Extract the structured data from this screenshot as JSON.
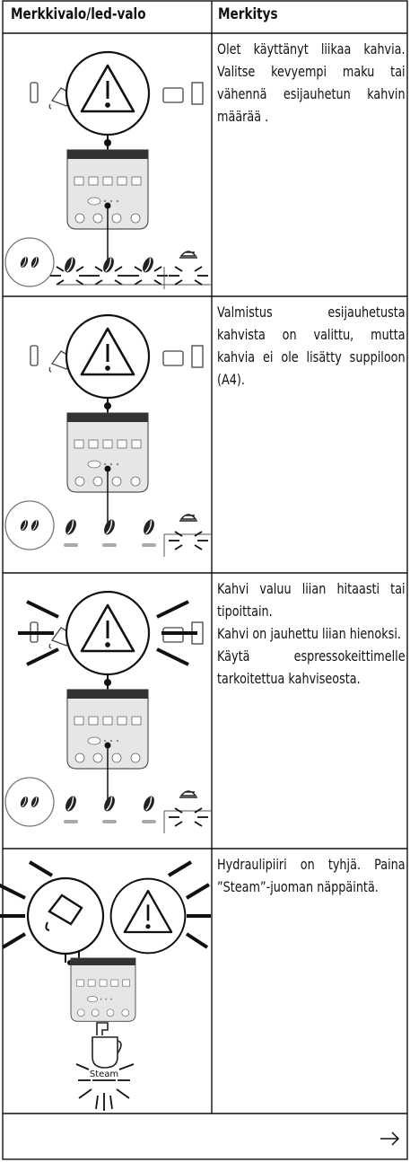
{
  "header": {
    "columns": [
      "Merkkivalo/led-valo",
      "Merkitys"
    ]
  },
  "rows": [
    {
      "text": [
        "Olet käyttänyt liikaa kahvia. Valitse kevyempi maku tai vähennä esijauhetun kahvin määrää ."
      ]
    },
    {
      "text": [
        "Valmistus esijauhetusta kahvista on valittu, mutta kahvia ei ole lisätty suppi­loon (A4)."
      ]
    },
    {
      "text": [
        "Kahvi valuu liian hitaasti tai tipoittain.",
        "Kahvi on jauhettu liian hienoksi.",
        "Käytä espressokeittimelle tarkoitettua kahviseosta."
      ]
    },
    {
      "text": [
        "Hydraulipiiri on tyhjä. Paina ”Steam”-juoman näppäintä."
      ],
      "label": "Steam"
    }
  ]
}
